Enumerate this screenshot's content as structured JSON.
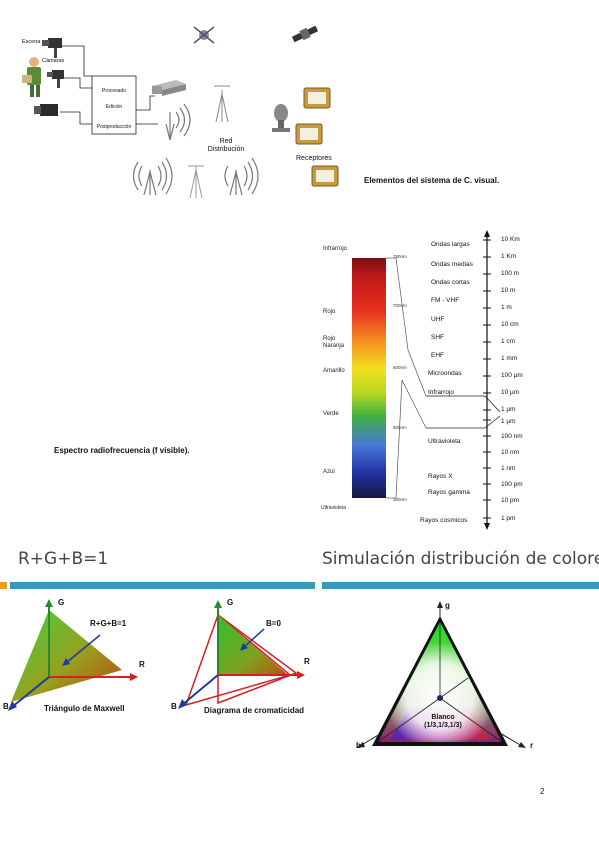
{
  "top_diagram": {
    "escena_label": "Escena",
    "camaras_label": "Cámaras",
    "proc_box": [
      "Procesado",
      "Edición",
      "Postproducción"
    ],
    "red_label": "Red\nDistribución",
    "receptores_label": "Receptores",
    "caption": "Elementos del sistema de C. visual."
  },
  "spectrum": {
    "caption": "Espectro radiofrecuencia (f visible).",
    "left_labels": [
      "Infrarrojo",
      "Rojo",
      "Rojo\nNaranja",
      "Amarillo",
      "Verde",
      "Azul",
      "Ultravioleta"
    ],
    "nm_labels": [
      "780nm",
      "700nm",
      "600nm",
      "500nm",
      "380nm"
    ],
    "bands": [
      "Ondas largas",
      "Ondas medias",
      "Ondas cortas",
      "FM - VHF",
      "UHF",
      "SHF",
      "EHF",
      "Microondas",
      "Infrarrojo",
      "Ultravioleta",
      "Rayos X",
      "Rayos gamma",
      "Rayos cosmicos"
    ],
    "lengths": [
      "10 Km",
      "1 Km",
      "100 m",
      "10 m",
      "1 m",
      "10 cm",
      "1 cm",
      "1 mm",
      "100 µm",
      "10 µm",
      "1 µm",
      "1 µm",
      "100 nm",
      "10 nm",
      "1 nm",
      "100 pm",
      "10 pm",
      "1 pm"
    ]
  },
  "section_left": {
    "title": "R+G+B=1",
    "maxwell": {
      "g": "G",
      "r": "R",
      "b": "B",
      "annotation": "R+G+B=1",
      "caption": "Triángulo de Maxwell"
    },
    "chroma": {
      "g": "G",
      "r": "R",
      "b": "B",
      "annotation": "B=0",
      "caption": "Diagrama de cromaticidad"
    }
  },
  "section_right": {
    "title": "Simulación distribución  de colores",
    "g": "g",
    "r": "r",
    "b": "b",
    "center": "Blanco",
    "center_coords": "(1/3,1/3,1/3)"
  },
  "page_number": "2",
  "colors": {
    "accent_bar": "#3a98b8",
    "bullet": "#e8a020",
    "arrow_red": "#d42020",
    "arrow_blue": "#1a3ca0",
    "arrow_green": "#2a8a2a"
  }
}
